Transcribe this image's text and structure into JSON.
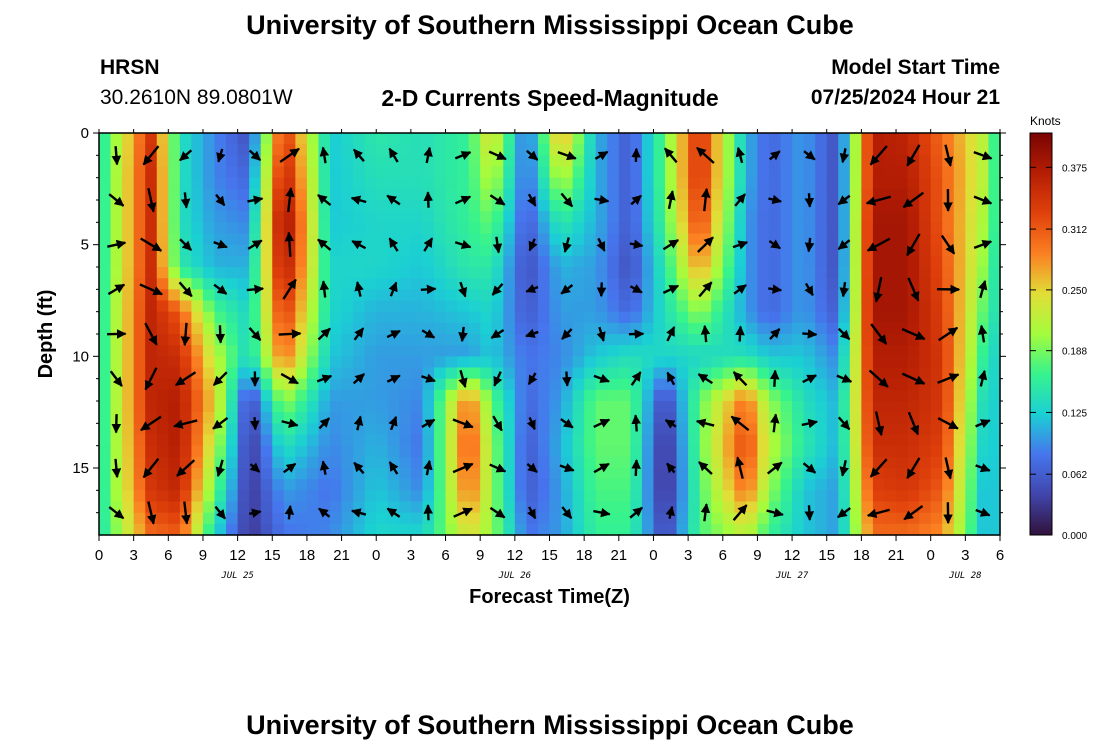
{
  "header": {
    "title_top": "University of Southern Mississippi Ocean Cube",
    "title_bottom": "University of Southern Mississippi Ocean Cube",
    "station": "HRSN",
    "coords": "30.2610N  89.0801W",
    "plot_title": "2-D Currents Speed-Magnitude",
    "model_start_label": "Model Start Time",
    "model_start_value": "07/25/2024 Hour 21"
  },
  "chart_data": {
    "type": "heatmap",
    "title": "2-D Currents Speed-Magnitude",
    "xlabel": "Forecast Time(Z)",
    "ylabel": "Depth (ft)",
    "x_tick_labels": [
      "0",
      "3",
      "6",
      "9",
      "12",
      "15",
      "18",
      "21",
      "0",
      "3",
      "6",
      "9",
      "12",
      "15",
      "18",
      "21",
      "0",
      "3",
      "6",
      "9",
      "12",
      "15",
      "18",
      "21",
      "0",
      "3",
      "6"
    ],
    "x_range_hours": [
      0,
      78
    ],
    "y_range_ft": [
      0,
      18
    ],
    "y_tick_labels": [
      "0",
      "5",
      "10",
      "15"
    ],
    "date_labels": [
      {
        "text": "JUL 25",
        "hour": 12
      },
      {
        "text": "JUL 26",
        "hour": 36
      },
      {
        "text": "JUL 27",
        "hour": 60
      },
      {
        "text": "JUL 28",
        "hour": 75
      }
    ],
    "colorbar": {
      "title": "Knots",
      "ticks": [
        "0.375",
        "0.312",
        "0.250",
        "0.188",
        "0.125",
        "0.062",
        "0.000"
      ],
      "range": [
        0,
        0.41
      ]
    },
    "time_hours": [
      0,
      4.5,
      7,
      10,
      13,
      16,
      20,
      24,
      28,
      32,
      34,
      37,
      40,
      43,
      46,
      49,
      52,
      56,
      58,
      61,
      64,
      67,
      70,
      73,
      76.5,
      78
    ],
    "depth_ft": [
      0,
      2,
      4,
      6,
      8,
      10,
      12,
      14,
      16,
      18
    ],
    "speed_knots": [
      [
        0.14,
        0.14,
        0.14,
        0.14,
        0.14,
        0.14,
        0.14,
        0.14,
        0.14,
        0.14
      ],
      [
        0.34,
        0.35,
        0.35,
        0.35,
        0.36,
        0.36,
        0.36,
        0.35,
        0.34,
        0.3
      ],
      [
        0.14,
        0.14,
        0.14,
        0.15,
        0.31,
        0.35,
        0.37,
        0.37,
        0.36,
        0.31
      ],
      [
        0.09,
        0.09,
        0.1,
        0.11,
        0.17,
        0.22,
        0.25,
        0.22,
        0.18,
        0.13
      ],
      [
        0.05,
        0.07,
        0.09,
        0.11,
        0.13,
        0.13,
        0.04,
        0.03,
        0.03,
        0.03
      ],
      [
        0.34,
        0.37,
        0.4,
        0.38,
        0.34,
        0.3,
        0.2,
        0.14,
        0.1,
        0.08
      ],
      [
        0.12,
        0.12,
        0.12,
        0.13,
        0.13,
        0.12,
        0.1,
        0.09,
        0.08,
        0.09
      ],
      [
        0.15,
        0.14,
        0.13,
        0.13,
        0.11,
        0.1,
        0.1,
        0.11,
        0.12,
        0.13
      ],
      [
        0.14,
        0.14,
        0.13,
        0.12,
        0.11,
        0.1,
        0.09,
        0.08,
        0.09,
        0.13
      ],
      [
        0.16,
        0.16,
        0.16,
        0.15,
        0.12,
        0.1,
        0.3,
        0.32,
        0.3,
        0.24
      ],
      [
        0.25,
        0.22,
        0.18,
        0.15,
        0.13,
        0.12,
        0.18,
        0.2,
        0.2,
        0.2
      ],
      [
        0.07,
        0.07,
        0.06,
        0.05,
        0.06,
        0.08,
        0.07,
        0.06,
        0.06,
        0.08
      ],
      [
        0.28,
        0.22,
        0.15,
        0.11,
        0.1,
        0.09,
        0.1,
        0.11,
        0.1,
        0.1
      ],
      [
        0.11,
        0.11,
        0.11,
        0.1,
        0.1,
        0.12,
        0.18,
        0.18,
        0.17,
        0.16
      ],
      [
        0.06,
        0.06,
        0.06,
        0.05,
        0.07,
        0.14,
        0.18,
        0.18,
        0.17,
        0.16
      ],
      [
        0.18,
        0.18,
        0.17,
        0.15,
        0.14,
        0.13,
        0.04,
        0.02,
        0.02,
        0.04
      ],
      [
        0.35,
        0.35,
        0.33,
        0.28,
        0.2,
        0.13,
        0.18,
        0.18,
        0.17,
        0.17
      ],
      [
        0.11,
        0.11,
        0.1,
        0.1,
        0.1,
        0.14,
        0.3,
        0.33,
        0.3,
        0.22
      ],
      [
        0.07,
        0.07,
        0.07,
        0.07,
        0.07,
        0.12,
        0.2,
        0.22,
        0.2,
        0.16
      ],
      [
        0.1,
        0.1,
        0.1,
        0.1,
        0.1,
        0.12,
        0.14,
        0.15,
        0.12,
        0.12
      ],
      [
        0.05,
        0.05,
        0.05,
        0.05,
        0.06,
        0.09,
        0.11,
        0.11,
        0.1,
        0.1
      ],
      [
        0.37,
        0.37,
        0.38,
        0.38,
        0.38,
        0.37,
        0.36,
        0.35,
        0.33,
        0.3
      ],
      [
        0.36,
        0.37,
        0.38,
        0.38,
        0.38,
        0.37,
        0.36,
        0.35,
        0.34,
        0.3
      ],
      [
        0.3,
        0.31,
        0.31,
        0.32,
        0.33,
        0.34,
        0.34,
        0.33,
        0.31,
        0.28
      ],
      [
        0.22,
        0.22,
        0.21,
        0.2,
        0.18,
        0.16,
        0.14,
        0.13,
        0.12,
        0.12
      ],
      [
        0.14,
        0.14,
        0.14,
        0.13,
        0.13,
        0.12,
        0.12,
        0.12,
        0.12,
        0.12
      ]
    ]
  }
}
